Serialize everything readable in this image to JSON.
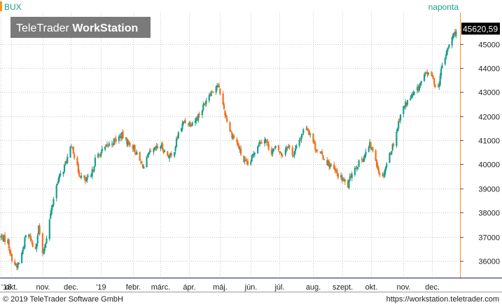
{
  "header": {
    "symbol": "BUX",
    "period": "naponta",
    "logo_light": "TeleTrader ",
    "logo_bold": "WorkStation"
  },
  "last_price_label": "45620,59",
  "footer": {
    "copyright": "© 2019 TeleTrader Software GmbH",
    "url": "https://workstation.teletrader.com"
  },
  "colors": {
    "up": "#1a9e8a",
    "down": "#f07020",
    "grid": "#c8c8c8",
    "accent": "#f7941d",
    "axis_line": "#1a1a6e",
    "logo_bg": "#7a7a7a"
  },
  "chart_data": {
    "type": "candlestick",
    "title": "BUX",
    "xlabel": "",
    "ylabel": "",
    "ylim": [
      35300,
      46300
    ],
    "yticks": [
      36000,
      37000,
      38000,
      39000,
      40000,
      41000,
      42000,
      43000,
      44000,
      45000
    ],
    "x_range": [
      "2018-09-23",
      "2019-12-31"
    ],
    "month_ticks": [
      {
        "label": "'18",
        "date": "2018-09-24"
      },
      {
        "label": "okt.",
        "date": "2018-10-04"
      },
      {
        "label": "nov.",
        "date": "2018-11-05"
      },
      {
        "label": "dec.",
        "date": "2018-12-03"
      },
      {
        "label": "'19",
        "date": "2019-01-03"
      },
      {
        "label": "febr.",
        "date": "2019-02-04"
      },
      {
        "label": "márc.",
        "date": "2019-03-04"
      },
      {
        "label": "ápr.",
        "date": "2019-04-02"
      },
      {
        "label": "máj.",
        "date": "2019-05-03"
      },
      {
        "label": "jún.",
        "date": "2019-06-03"
      },
      {
        "label": "júl.",
        "date": "2019-07-02"
      },
      {
        "label": "aug.",
        "date": "2019-08-05"
      },
      {
        "label": "szept.",
        "date": "2019-09-03"
      },
      {
        "label": "okt.",
        "date": "2019-10-02"
      },
      {
        "label": "nov.",
        "date": "2019-11-04"
      },
      {
        "label": "dec.",
        "date": "2019-12-03"
      }
    ],
    "close_path": [
      [
        "2018-09-24",
        37000
      ],
      [
        "2018-10-01",
        36800
      ],
      [
        "2018-10-04",
        36200
      ],
      [
        "2018-10-10",
        35700
      ],
      [
        "2018-10-15",
        36300
      ],
      [
        "2018-10-20",
        37200
      ],
      [
        "2018-10-24",
        36900
      ],
      [
        "2018-10-28",
        36300
      ],
      [
        "2018-11-01",
        37400
      ],
      [
        "2018-11-05",
        36200
      ],
      [
        "2018-11-08",
        36800
      ],
      [
        "2018-11-12",
        37700
      ],
      [
        "2018-11-16",
        38600
      ],
      [
        "2018-11-20",
        39300
      ],
      [
        "2018-11-26",
        39800
      ],
      [
        "2018-12-01",
        40400
      ],
      [
        "2018-12-05",
        40800
      ],
      [
        "2018-12-08",
        40100
      ],
      [
        "2018-12-12",
        39600
      ],
      [
        "2018-12-18",
        39300
      ],
      [
        "2018-12-24",
        39500
      ],
      [
        "2018-12-28",
        40200
      ],
      [
        "2019-01-03",
        40500
      ],
      [
        "2019-01-10",
        40800
      ],
      [
        "2019-01-17",
        41000
      ],
      [
        "2019-01-24",
        41200
      ],
      [
        "2019-01-30",
        40900
      ],
      [
        "2019-02-05",
        40700
      ],
      [
        "2019-02-10",
        40200
      ],
      [
        "2019-02-15",
        39900
      ],
      [
        "2019-02-20",
        40400
      ],
      [
        "2019-02-26",
        40600
      ],
      [
        "2019-03-04",
        40800
      ],
      [
        "2019-03-10",
        40400
      ],
      [
        "2019-03-16",
        40300
      ],
      [
        "2019-03-22",
        41300
      ],
      [
        "2019-03-28",
        41800
      ],
      [
        "2019-04-03",
        41700
      ],
      [
        "2019-04-09",
        41900
      ],
      [
        "2019-04-15",
        42300
      ],
      [
        "2019-04-21",
        42900
      ],
      [
        "2019-04-26",
        43100
      ],
      [
        "2019-04-30",
        43300
      ],
      [
        "2019-05-03",
        43000
      ],
      [
        "2019-05-08",
        42100
      ],
      [
        "2019-05-14",
        41300
      ],
      [
        "2019-05-20",
        40900
      ],
      [
        "2019-05-26",
        40200
      ],
      [
        "2019-06-01",
        39900
      ],
      [
        "2019-06-06",
        40500
      ],
      [
        "2019-06-11",
        40900
      ],
      [
        "2019-06-17",
        41100
      ],
      [
        "2019-06-23",
        40500
      ],
      [
        "2019-06-29",
        40700
      ],
      [
        "2019-07-04",
        40400
      ],
      [
        "2019-07-10",
        40800
      ],
      [
        "2019-07-16",
        40400
      ],
      [
        "2019-07-22",
        41000
      ],
      [
        "2019-07-28",
        41600
      ],
      [
        "2019-08-02",
        41300
      ],
      [
        "2019-08-07",
        40700
      ],
      [
        "2019-08-13",
        40400
      ],
      [
        "2019-08-19",
        40100
      ],
      [
        "2019-08-25",
        39800
      ],
      [
        "2019-08-31",
        39500
      ],
      [
        "2019-09-05",
        39300
      ],
      [
        "2019-09-09",
        39100
      ],
      [
        "2019-09-13",
        39700
      ],
      [
        "2019-09-19",
        40000
      ],
      [
        "2019-09-25",
        40300
      ],
      [
        "2019-10-01",
        40800
      ],
      [
        "2019-10-06",
        40400
      ],
      [
        "2019-10-10",
        39700
      ],
      [
        "2019-10-14",
        39500
      ],
      [
        "2019-10-20",
        40300
      ],
      [
        "2019-10-26",
        41000
      ],
      [
        "2019-11-01",
        42100
      ],
      [
        "2019-11-06",
        42500
      ],
      [
        "2019-11-12",
        42800
      ],
      [
        "2019-11-18",
        43100
      ],
      [
        "2019-11-24",
        43600
      ],
      [
        "2019-11-30",
        43900
      ],
      [
        "2019-12-05",
        43400
      ],
      [
        "2019-12-09",
        43200
      ],
      [
        "2019-12-13",
        44100
      ],
      [
        "2019-12-18",
        44700
      ],
      [
        "2019-12-22",
        45200
      ],
      [
        "2019-12-28",
        45620.59
      ]
    ],
    "last_close": 45620.59,
    "colors": {
      "up": "#1a9e8a",
      "down": "#f07020"
    }
  }
}
